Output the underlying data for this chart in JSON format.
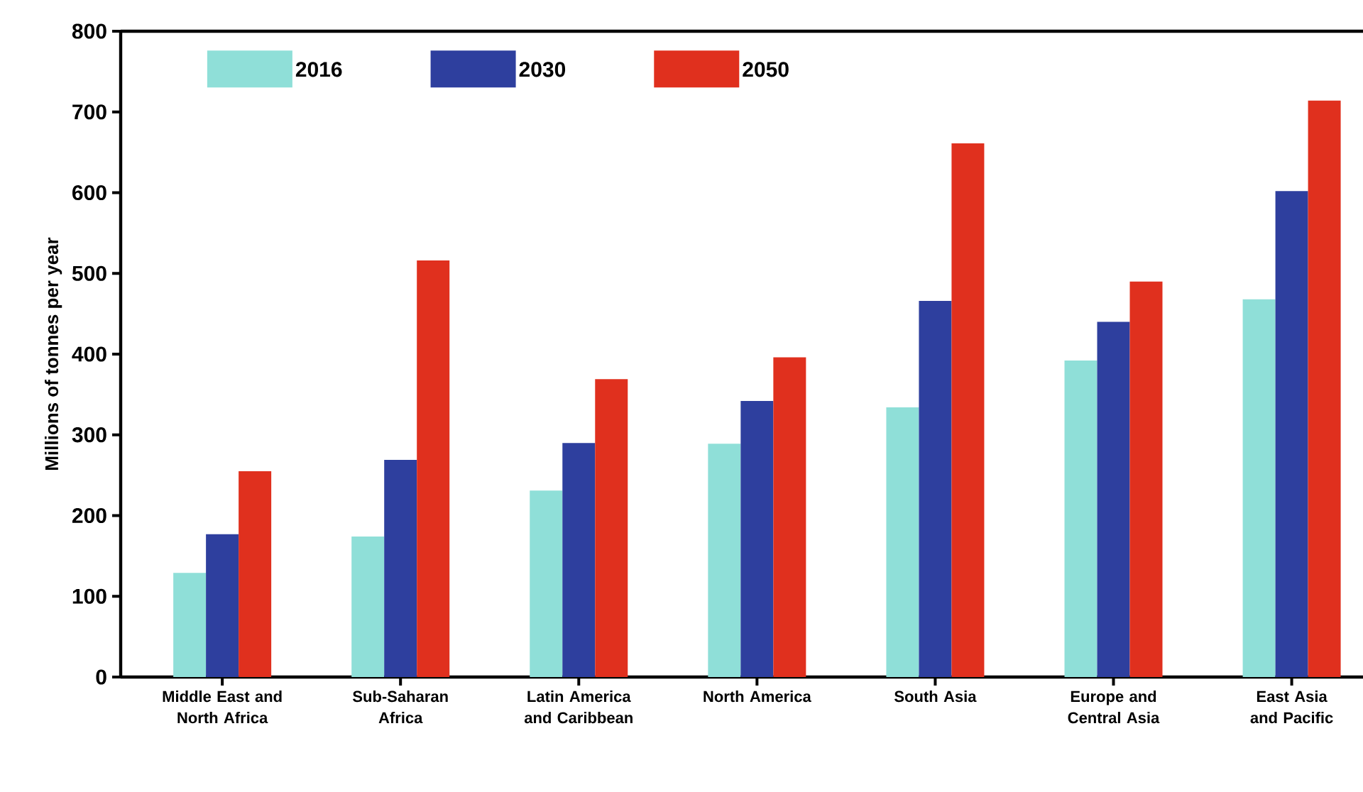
{
  "chart_data": {
    "type": "bar",
    "ylabel": "Millions of tonnes per year",
    "categories": [
      "Middle East and North Africa",
      "Sub-Saharan Africa",
      "Latin America and Caribbean",
      "North America",
      "South Asia",
      "Europe and Central Asia",
      "East Asia and Pacific"
    ],
    "series": [
      {
        "name": "2016",
        "color": "#8fdfd8",
        "values": [
          129,
          174,
          231,
          289,
          334,
          392,
          468
        ]
      },
      {
        "name": "2030",
        "color": "#2e3f9e",
        "values": [
          177,
          269,
          290,
          342,
          466,
          440,
          602
        ]
      },
      {
        "name": "2050",
        "color": "#e0301e",
        "values": [
          255,
          516,
          369,
          396,
          661,
          490,
          714
        ]
      }
    ],
    "ylim": [
      0,
      800
    ],
    "yticks": [
      0,
      100,
      200,
      300,
      400,
      500,
      600,
      700,
      800
    ],
    "grid": false,
    "legend": "top left"
  }
}
